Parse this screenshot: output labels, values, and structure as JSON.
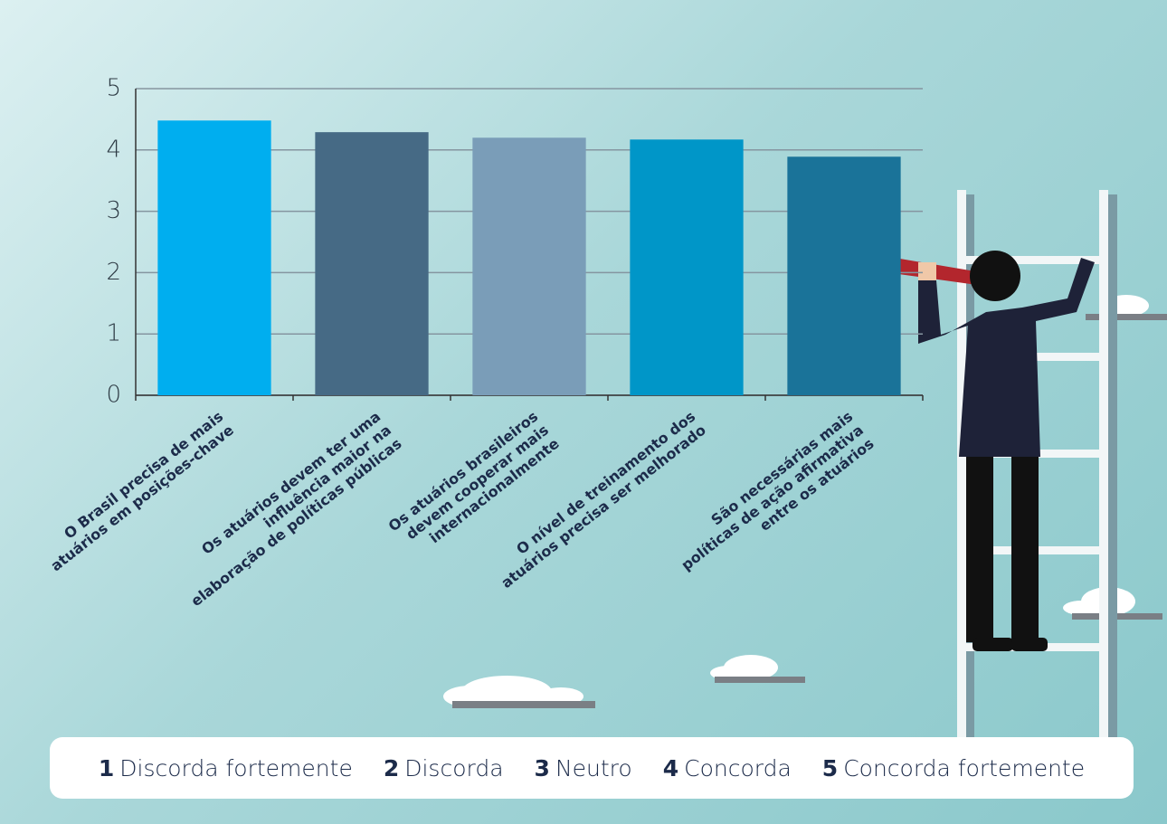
{
  "chart_data": {
    "type": "bar",
    "categories": [
      [
        "O Brasil precisa de mais",
        "atuários em posições-chave"
      ],
      [
        "Os atuários devem ter uma",
        "influência maior na",
        "elaboração de políticas públicas"
      ],
      [
        "Os atuários brasileiros",
        "devem cooperar mais",
        "internacionalmente"
      ],
      [
        "O nível de treinamento dos",
        "atuários precisa ser melhorado"
      ],
      [
        "São necessárias mais",
        "políticas de ação afirmativa",
        "entre os atuários"
      ]
    ],
    "values": [
      4.48,
      4.29,
      4.2,
      4.17,
      3.89
    ],
    "colors": [
      "#00aeef",
      "#466a85",
      "#7a9db8",
      "#0096c8",
      "#1a7399"
    ],
    "ylim": [
      0,
      5
    ],
    "yticks": [
      0,
      1,
      2,
      3,
      4,
      5
    ],
    "grid": true,
    "legend": [
      {
        "key": 1,
        "label": "Discorda fortemente"
      },
      {
        "key": 2,
        "label": "Discorda"
      },
      {
        "key": 3,
        "label": "Neutro"
      },
      {
        "key": 4,
        "label": "Concorda"
      },
      {
        "key": 5,
        "label": "Concorda fortemente"
      }
    ]
  }
}
